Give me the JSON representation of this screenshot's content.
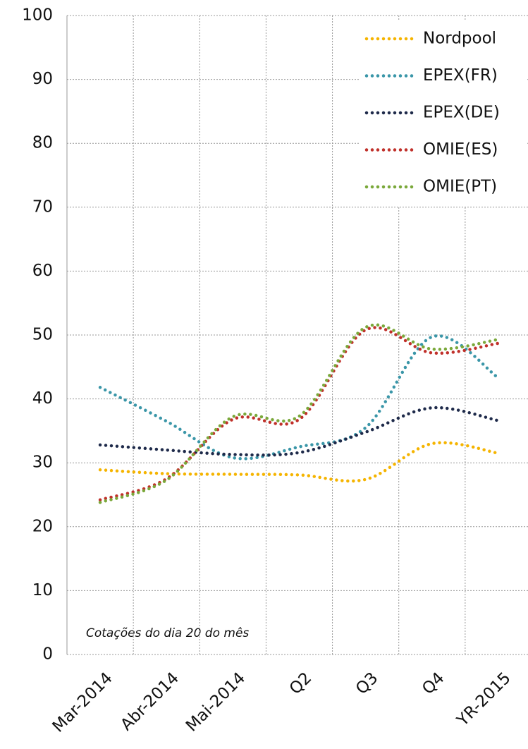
{
  "chart_data": {
    "type": "line",
    "categories": [
      "Mar-2014",
      "Abr-2014",
      "Mai-2014",
      "Q2",
      "Q3",
      "Q4",
      "YR-2015"
    ],
    "series": [
      {
        "name": "Nordpool",
        "color": "#f5b400",
        "values": [
          28.9,
          28.3,
          28.2,
          28.1,
          27.4,
          33.0,
          31.5
        ]
      },
      {
        "name": "EPEX(FR)",
        "color": "#3a96a8",
        "values": [
          41.8,
          36.5,
          30.8,
          32.5,
          35.5,
          49.7,
          43.3
        ]
      },
      {
        "name": "EPEX(DE)",
        "color": "#1e2a4a",
        "values": [
          32.8,
          32.0,
          31.3,
          31.6,
          34.8,
          38.6,
          36.6
        ]
      },
      {
        "name": "OMIE(ES)",
        "color": "#c0302a",
        "values": [
          24.2,
          27.5,
          36.8,
          36.8,
          50.8,
          47.2,
          48.7
        ]
      },
      {
        "name": "OMIE(PT)",
        "color": "#7aa83a",
        "values": [
          23.8,
          27.3,
          37.2,
          37.3,
          51.2,
          47.8,
          49.3
        ]
      }
    ],
    "ylim": [
      0,
      100
    ],
    "yticks": [
      0,
      10,
      20,
      30,
      40,
      50,
      60,
      70,
      80,
      90,
      100
    ],
    "grid": true,
    "legend": "top-right",
    "annotation": "Cotações do dia 20 do mês"
  }
}
